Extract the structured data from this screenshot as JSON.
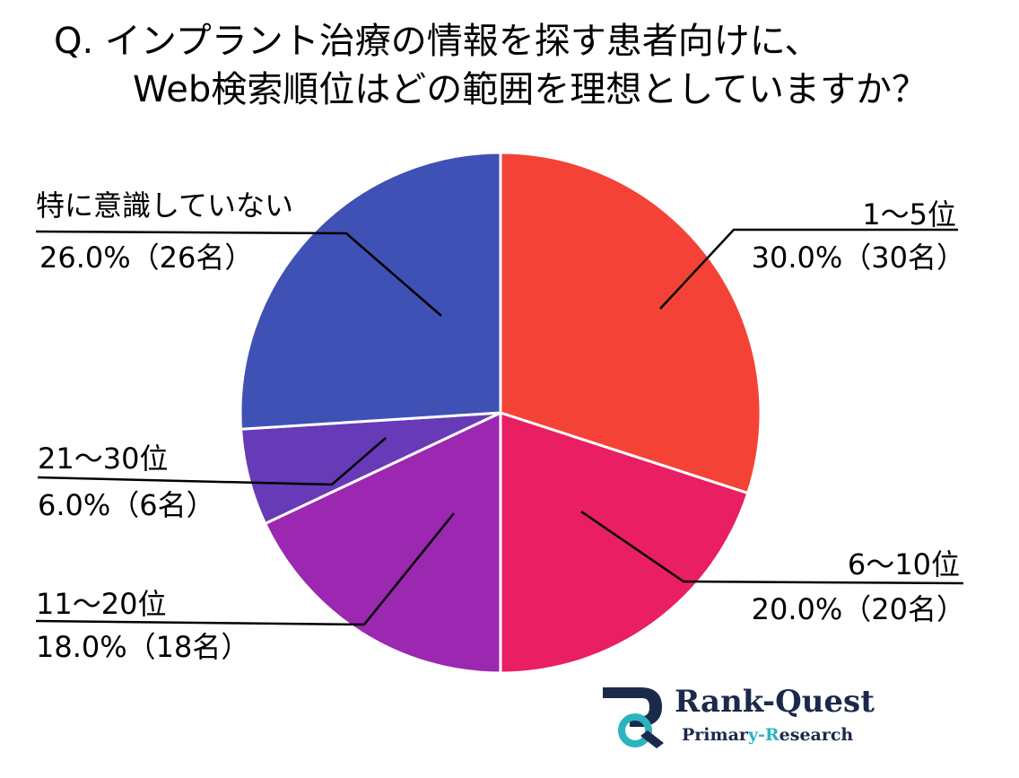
{
  "title": {
    "line1": "Q. インプラント治療の情報を探す患者向けに、",
    "line2": "Web検索順位はどの範囲を理想としていますか？"
  },
  "chart_data": {
    "type": "pie",
    "categories": [
      "1〜5位",
      "6〜10位",
      "11〜20位",
      "21〜30位",
      "特に意識していない"
    ],
    "values": [
      30.0,
      20.0,
      18.0,
      6.0,
      26.0
    ],
    "counts": [
      30,
      20,
      18,
      6,
      26
    ],
    "slice_labels": [
      {
        "name": "1〜5位",
        "value_text": "30.0%（30名）"
      },
      {
        "name": "6〜10位",
        "value_text": "20.0%（20名）"
      },
      {
        "name": "11〜20位",
        "value_text": "18.0%（18名）"
      },
      {
        "name": "21〜30位",
        "value_text": "6.0%（6名）"
      },
      {
        "name": "特に意識していない",
        "value_text": "26.0%（26名）"
      }
    ],
    "colors": [
      "#f44336",
      "#e91e63",
      "#9c27b0",
      "#673ab7",
      "#3f51b5"
    ],
    "start": "top",
    "direction": "clockwise"
  },
  "logo": {
    "name": "Rank-Quest",
    "subtitle_part1": "Primar",
    "subtitle_accent": "y-R",
    "subtitle_part2": "esearch",
    "colors": {
      "navy": "#1b2a4a",
      "teal": "#2bb3c0"
    }
  }
}
